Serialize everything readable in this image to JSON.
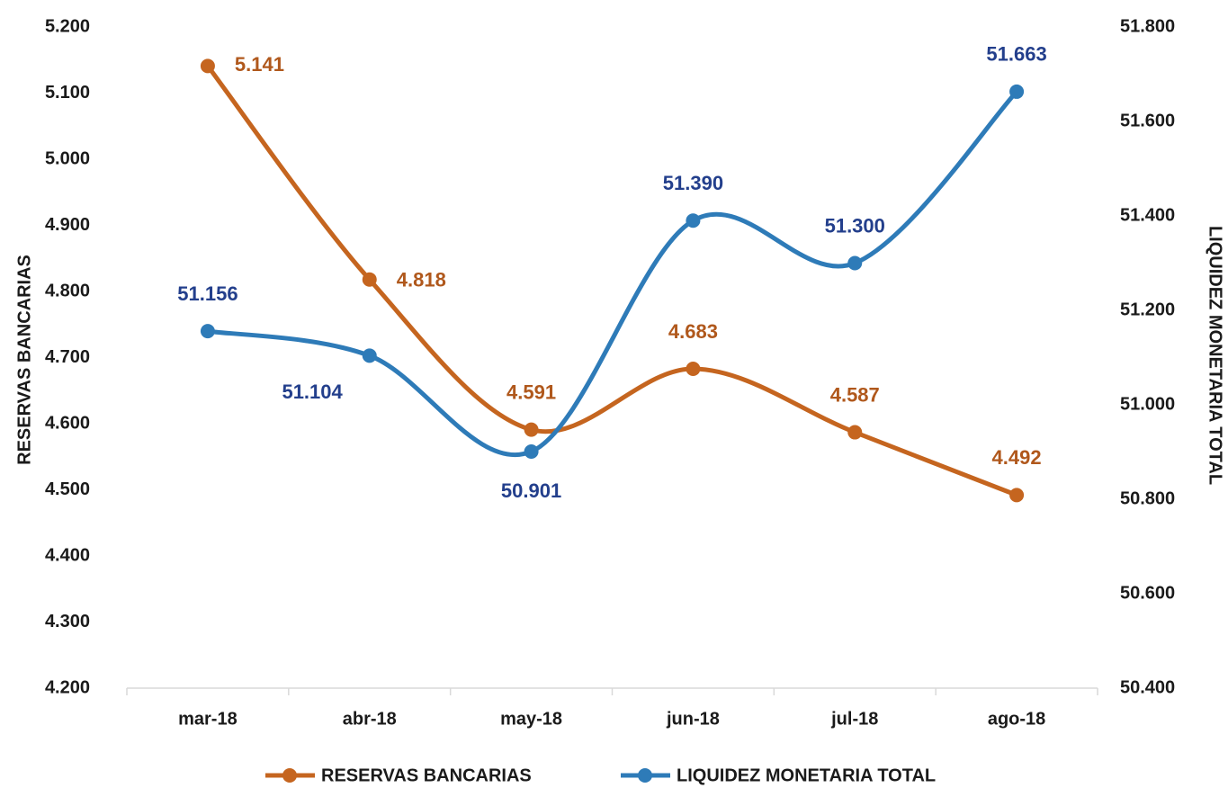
{
  "chart_data": {
    "type": "line",
    "categories": [
      "mar-18",
      "abr-18",
      "may-18",
      "jun-18",
      "jul-18",
      "ago-18"
    ],
    "series": [
      {
        "name": "RESERVAS BANCARIAS",
        "color": "#c5651f",
        "values": [
          5141,
          4818,
          4591,
          4683,
          4587,
          4492
        ],
        "value_labels": [
          "5.141",
          "4.818",
          "4.591",
          "4.683",
          "4.587",
          "4.492"
        ]
      },
      {
        "name": "LIQUIDEZ MONETARIA TOTAL",
        "color": "#2e7bb8",
        "axis": "y2",
        "values": [
          51156,
          51104,
          50901,
          51390,
          51300,
          51663
        ],
        "value_labels": [
          "51.156",
          "51.104",
          "50.901",
          "51.390",
          "51.300",
          "51.663"
        ]
      }
    ],
    "ylabel": "RESERVAS BANCARIAS",
    "y2label": "LIQUIDEZ MONETARIA TOTAL",
    "ylim": [
      4200,
      5200
    ],
    "yticks": [
      {
        "value": 4200,
        "label": "4.200"
      },
      {
        "value": 4300,
        "label": "4.300"
      },
      {
        "value": 4400,
        "label": "4.400"
      },
      {
        "value": 4500,
        "label": "4.500"
      },
      {
        "value": 4600,
        "label": "4.600"
      },
      {
        "value": 4700,
        "label": "4.700"
      },
      {
        "value": 4800,
        "label": "4.800"
      },
      {
        "value": 4900,
        "label": "4.900"
      },
      {
        "value": 5000,
        "label": "5.000"
      },
      {
        "value": 5100,
        "label": "5.100"
      },
      {
        "value": 5200,
        "label": "5.200"
      }
    ],
    "y2lim": [
      50400,
      51800
    ],
    "y2ticks": [
      {
        "value": 50400,
        "label": "50.400"
      },
      {
        "value": 50600,
        "label": "50.600"
      },
      {
        "value": 50800,
        "label": "50.800"
      },
      {
        "value": 51000,
        "label": "51.000"
      },
      {
        "value": 51200,
        "label": "51.200"
      },
      {
        "value": 51400,
        "label": "51.400"
      },
      {
        "value": 51600,
        "label": "51.600"
      },
      {
        "value": 51800,
        "label": "51.800"
      }
    ],
    "legend": "bottom"
  }
}
